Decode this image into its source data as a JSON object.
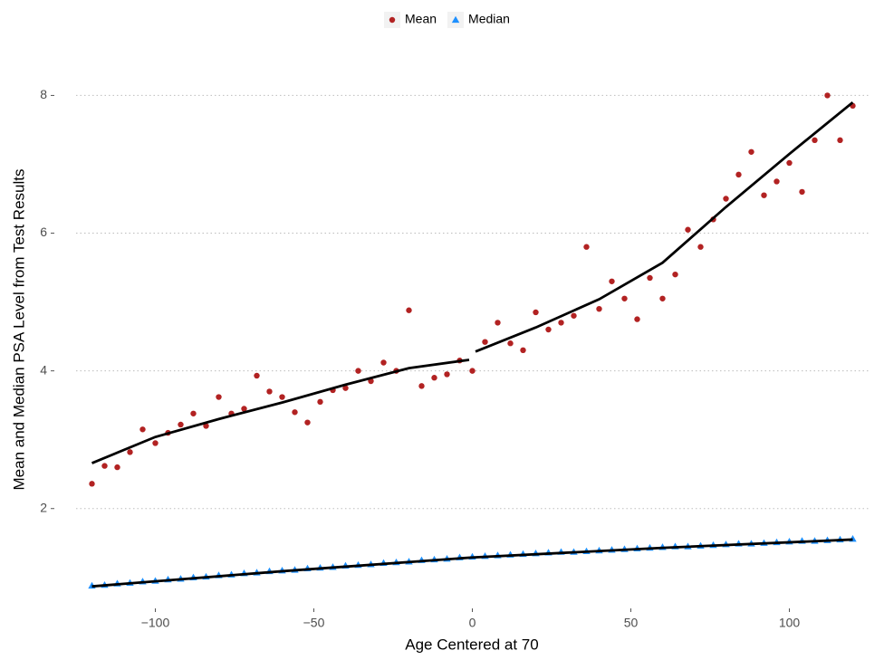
{
  "chart_data": {
    "type": "scatter",
    "xlabel": "Age Centered at 70",
    "ylabel": "Mean and Median PSA Level from Test Results",
    "xlim": [
      -125,
      125
    ],
    "ylim": [
      0.8,
      8.4
    ],
    "xticks": [
      {
        "value": -100,
        "label": "−100"
      },
      {
        "value": -50,
        "label": "−50"
      },
      0,
      50,
      100
    ],
    "yticks": [
      2,
      4,
      6,
      8
    ],
    "grid": true,
    "legend": "top",
    "x": [
      -120,
      -116,
      -112,
      -108,
      -104,
      -100,
      -96,
      -92,
      -88,
      -84,
      -80,
      -76,
      -72,
      -68,
      -64,
      -60,
      -56,
      -52,
      -48,
      -44,
      -40,
      -36,
      -32,
      -28,
      -24,
      -20,
      -16,
      -12,
      -8,
      -4,
      0,
      4,
      8,
      12,
      16,
      20,
      24,
      28,
      32,
      36,
      40,
      44,
      48,
      52,
      56,
      60,
      64,
      68,
      72,
      76,
      80,
      84,
      88,
      92,
      96,
      100,
      104,
      108,
      112,
      116,
      120
    ],
    "series": [
      {
        "name": "Mean",
        "color": "#b22222",
        "marker": "circle",
        "values": [
          2.36,
          2.62,
          2.6,
          2.82,
          3.15,
          2.95,
          3.1,
          3.22,
          3.38,
          3.2,
          3.62,
          3.38,
          3.45,
          3.93,
          3.7,
          3.62,
          3.4,
          3.25,
          3.55,
          3.72,
          3.75,
          4.0,
          3.85,
          4.12,
          4.0,
          4.88,
          3.78,
          3.9,
          3.95,
          4.15,
          4.0,
          4.42,
          4.7,
          4.4,
          4.3,
          4.85,
          4.6,
          4.7,
          4.8,
          5.8,
          4.9,
          5.3,
          5.05,
          4.75,
          5.35,
          5.05,
          5.4,
          6.05,
          5.8,
          6.2,
          6.5,
          6.85,
          7.18,
          6.55,
          6.75,
          7.02,
          6.6,
          7.35,
          8.0,
          7.35,
          7.85
        ]
      },
      {
        "name": "Median",
        "color": "#1e90ff",
        "marker": "triangle",
        "values": [
          0.88,
          0.89,
          0.91,
          0.92,
          0.94,
          0.95,
          0.97,
          0.98,
          1.0,
          1.01,
          1.03,
          1.04,
          1.06,
          1.07,
          1.09,
          1.1,
          1.11,
          1.13,
          1.14,
          1.15,
          1.17,
          1.18,
          1.19,
          1.21,
          1.22,
          1.23,
          1.25,
          1.26,
          1.27,
          1.29,
          1.3,
          1.31,
          1.32,
          1.33,
          1.34,
          1.35,
          1.36,
          1.37,
          1.37,
          1.38,
          1.39,
          1.4,
          1.41,
          1.42,
          1.43,
          1.44,
          1.45,
          1.45,
          1.46,
          1.47,
          1.48,
          1.49,
          1.49,
          1.5,
          1.51,
          1.52,
          1.53,
          1.53,
          1.54,
          1.55,
          1.56
        ]
      }
    ],
    "lines": [
      {
        "color": "#000000",
        "x": [
          -120,
          -100,
          -80,
          -60,
          -40,
          -20,
          -1,
          0,
          1,
          20,
          40,
          60,
          80,
          100,
          120
        ],
        "values": [
          2.66,
          3.04,
          3.3,
          3.54,
          3.8,
          4.04,
          4.16,
          null,
          4.28,
          4.63,
          5.04,
          5.57,
          6.38,
          7.15,
          7.9
        ]
      },
      {
        "color": "#000000",
        "x": [
          -120,
          -60,
          0,
          60,
          120
        ],
        "values": [
          0.87,
          1.09,
          1.29,
          1.43,
          1.55
        ]
      }
    ]
  }
}
